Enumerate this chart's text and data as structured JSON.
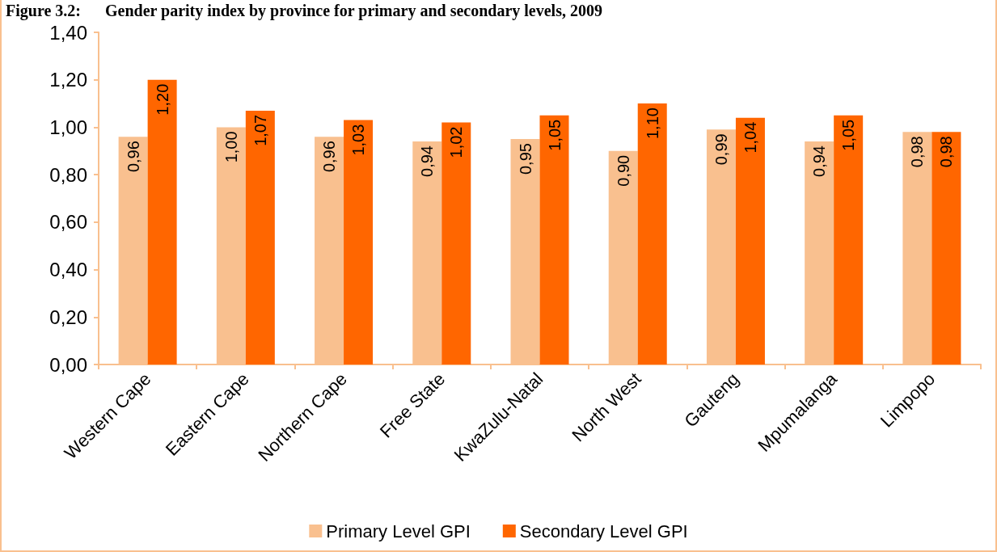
{
  "chart_data": {
    "type": "bar",
    "title": "Figure 3.2:      Gender parity index by province for primary and secondary levels, 2009",
    "categories": [
      "Western Cape",
      "Eastern Cape",
      "Northern Cape",
      "Free State",
      "KwaZulu-Natal",
      "North West",
      "Gauteng",
      "Mpumalanga",
      "Limpopo"
    ],
    "series": [
      {
        "name": "Primary Level GPI",
        "color": "#f9c08f",
        "values": [
          0.96,
          1.0,
          0.96,
          0.94,
          0.95,
          0.9,
          0.99,
          0.94,
          0.98
        ],
        "value_labels": [
          "0,96",
          "1,00",
          "0,96",
          "0,94",
          "0,95",
          "0,90",
          "0,99",
          "0,94",
          "0,98"
        ]
      },
      {
        "name": "Secondary Level GPI",
        "color": "#ff6600",
        "values": [
          1.2,
          1.07,
          1.03,
          1.02,
          1.05,
          1.1,
          1.04,
          1.05,
          0.98
        ],
        "value_labels": [
          "1,20",
          "1,07",
          "1,03",
          "1,02",
          "1,05",
          "1,10",
          "1,04",
          "1,05",
          "0,98"
        ]
      }
    ],
    "ylim": [
      0,
      1.4
    ],
    "yticks": [
      {
        "value": 0,
        "label": "0,00"
      },
      {
        "value": 0.2,
        "label": "0,20"
      },
      {
        "value": 0.4,
        "label": "0,40"
      },
      {
        "value": 0.6,
        "label": "0,60"
      },
      {
        "value": 0.8,
        "label": "0,80"
      },
      {
        "value": 1.0,
        "label": "1,00"
      },
      {
        "value": 1.2,
        "label": "1,20"
      },
      {
        "value": 1.4,
        "label": "1,40"
      }
    ],
    "grid": false,
    "legend": "bottom"
  }
}
